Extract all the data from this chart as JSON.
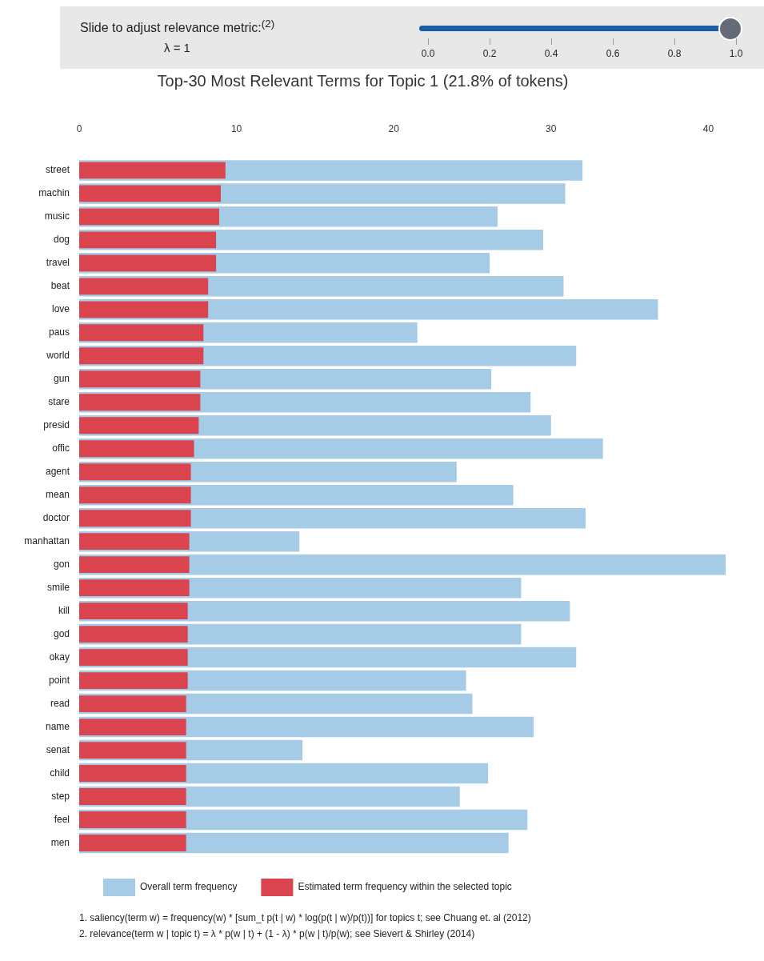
{
  "chart_data": {
    "type": "bar",
    "orientation": "horizontal",
    "title": "Top-30 Most Relevant Terms for Topic 1 (21.8% of tokens)",
    "categories": [
      "street",
      "machin",
      "music",
      "dog",
      "travel",
      "beat",
      "love",
      "paus",
      "world",
      "gun",
      "stare",
      "presid",
      "offic",
      "agent",
      "mean",
      "doctor",
      "manhattan",
      "gon",
      "smile",
      "kill",
      "god",
      "okay",
      "point",
      "read",
      "name",
      "senat",
      "child",
      "step",
      "feel",
      "men"
    ],
    "series": [
      {
        "name": "Overall term frequency",
        "color": "#a6cbe6",
        "values": [
          32.0,
          30.9,
          26.6,
          29.5,
          26.1,
          30.8,
          36.8,
          21.5,
          31.6,
          26.2,
          28.7,
          30.0,
          33.3,
          24.0,
          27.6,
          32.2,
          14.0,
          41.1,
          28.1,
          31.2,
          28.1,
          31.6,
          24.6,
          25.0,
          28.9,
          14.2,
          26.0,
          24.2,
          28.5,
          27.3
        ]
      },
      {
        "name": "Estimated term frequency within the selected topic",
        "color": "#d9444f",
        "values": [
          9.3,
          9.0,
          8.9,
          8.7,
          8.7,
          8.2,
          8.2,
          7.9,
          7.9,
          7.7,
          7.7,
          7.6,
          7.3,
          7.1,
          7.1,
          7.1,
          7.0,
          7.0,
          7.0,
          6.9,
          6.9,
          6.9,
          6.9,
          6.8,
          6.8,
          6.8,
          6.8,
          6.8,
          6.8,
          6.8
        ]
      }
    ],
    "xlim": [
      0,
      41.1
    ],
    "xticks": [
      0,
      10,
      20,
      30,
      40
    ],
    "grid": false,
    "legend": "bottom left",
    "annotations": [
      "Slide to adjust relevance metric:$^{(2)}$",
      "λ = 1",
      "0.0",
      "0.2",
      "0.4",
      "0.6",
      "0.8",
      "1.0",
      "1. saliency(term w) = frequency(w) * [sum_t p(t | w) * log(p(t | w)/p(t))] for topics t; see Chuang et. al (2012)",
      "2. relevance(term w | topic t) = λ * p(w | t) + (1 - λ) * p(w | t)/p(w); see Sievert & Shirley (2014)"
    ]
  }
}
